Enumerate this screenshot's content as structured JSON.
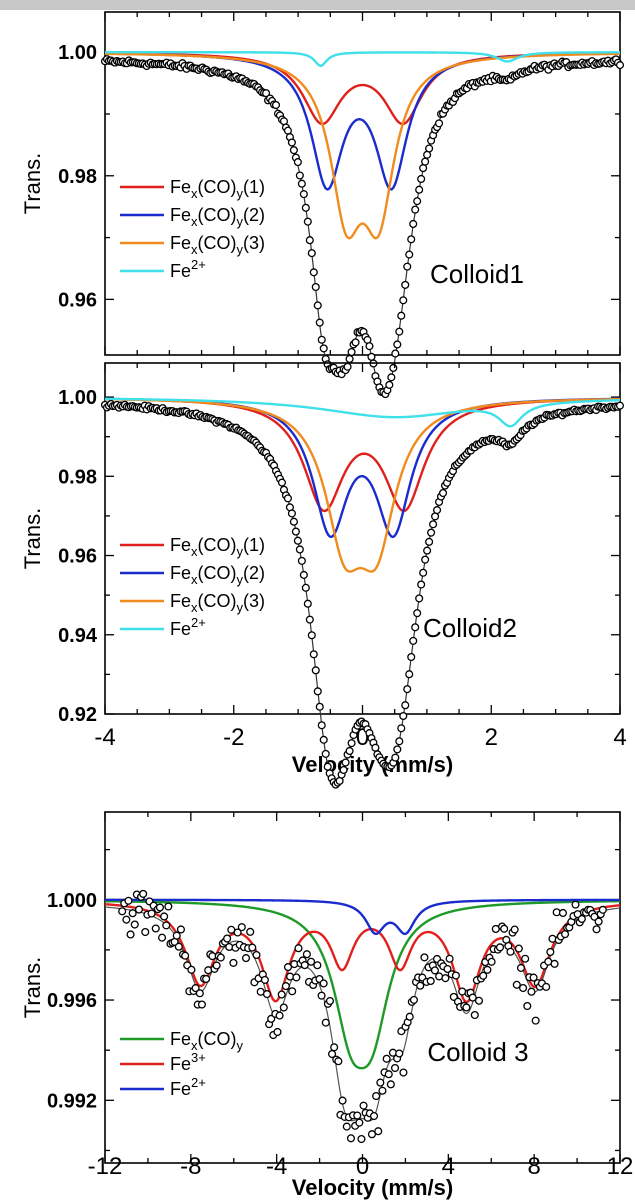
{
  "chart_data": [
    {
      "type": "line",
      "panel_label": "Colloid1",
      "ylabel": "Trans.",
      "xlabel": "",
      "xlim": [
        -4,
        4
      ],
      "ylim": [
        0.951,
        1.0065
      ],
      "yticks": [
        "0.96",
        "0.98",
        "1.00"
      ],
      "ytick_values": [
        0.96,
        0.98,
        1.0
      ],
      "xticks": [],
      "legend_location": "left",
      "series": [
        {
          "name": "Fe",
          "sub1": "x",
          "mid": "(CO)",
          "sub2": "y",
          "tail": "(1)",
          "color": "#e0201c",
          "components": [
            {
              "center": -0.63,
              "depth": 0.0108,
              "width": 0.36
            },
            {
              "center": 0.63,
              "depth": 0.0108,
              "width": 0.36
            }
          ]
        },
        {
          "name": "Fe",
          "sub1": "x",
          "mid": "(CO)",
          "sub2": "y",
          "tail": "(2)",
          "color": "#1a2ccc",
          "components": [
            {
              "center": -0.55,
              "depth": 0.0205,
              "width": 0.3
            },
            {
              "center": 0.45,
              "depth": 0.0205,
              "width": 0.3
            }
          ]
        },
        {
          "name": "Fe",
          "sub1": "x",
          "mid": "(CO)",
          "sub2": "y",
          "tail": "(3)",
          "color": "#f08c1e",
          "components": [
            {
              "center": -0.25,
              "depth": 0.0235,
              "width": 0.3
            },
            {
              "center": 0.25,
              "depth": 0.0235,
              "width": 0.3
            }
          ]
        },
        {
          "name": "Fe",
          "sup": "2+",
          "color": "#3fe0ea",
          "components": [
            {
              "center": -0.65,
              "depth": 0.0022,
              "width": 0.12
            },
            {
              "center": 2.25,
              "depth": 0.0015,
              "width": 0.2
            }
          ]
        }
      ],
      "total_fit": {
        "color": "#333333",
        "baseline": 0.9992
      },
      "data_point_count": 260
    },
    {
      "type": "line",
      "panel_label": "Colloid2",
      "ylabel": "Trans.",
      "xlabel": "Velocity (mm/s)",
      "xlim": [
        -4,
        4
      ],
      "ylim": [
        0.92,
        1.0086
      ],
      "yticks": [
        "0.92",
        "0.94",
        "0.96",
        "0.98",
        "1.00"
      ],
      "ytick_values": [
        0.92,
        0.94,
        0.96,
        0.98,
        1.0
      ],
      "xticks": [
        "-4",
        "-2",
        "0",
        "2",
        "4"
      ],
      "xtick_values": [
        -4,
        -2,
        0,
        2,
        4
      ],
      "legend_location": "left",
      "series": [
        {
          "name": "Fe",
          "sub1": "x",
          "mid": "(CO)",
          "sub2": "y",
          "tail": "(1)",
          "color": "#e0201c",
          "components": [
            {
              "center": -0.6,
              "depth": 0.0265,
              "width": 0.38
            },
            {
              "center": 0.65,
              "depth": 0.0265,
              "width": 0.38
            }
          ]
        },
        {
          "name": "Fe",
          "sub1": "x",
          "mid": "(CO)",
          "sub2": "y",
          "tail": "(2)",
          "color": "#1a2ccc",
          "components": [
            {
              "center": -0.5,
              "depth": 0.032,
              "width": 0.33
            },
            {
              "center": 0.48,
              "depth": 0.032,
              "width": 0.33
            }
          ]
        },
        {
          "name": "Fe",
          "sub1": "x",
          "mid": "(CO)",
          "sub2": "y",
          "tail": "(3)",
          "color": "#f08c1e",
          "components": [
            {
              "center": -0.28,
              "depth": 0.032,
              "width": 0.36
            },
            {
              "center": 0.22,
              "depth": 0.032,
              "width": 0.36
            }
          ]
        },
        {
          "name": "Fe",
          "sup": "2+",
          "color": "#3fe0ea",
          "components": [
            {
              "center": 0.5,
              "depth": 0.005,
              "width": 1.4
            },
            {
              "center": 2.3,
              "depth": 0.0055,
              "width": 0.22
            }
          ]
        }
      ],
      "total_fit": {
        "color": "#333333",
        "baseline": 1.0
      },
      "data_point_count": 260
    },
    {
      "type": "line",
      "panel_label": "Colloid 3",
      "ylabel": "Trans.",
      "xlabel": "Velocity (mm/s)",
      "xlim": [
        -12,
        12
      ],
      "ylim": [
        0.9895,
        1.0035
      ],
      "yticks": [
        "0.992",
        "0.996",
        "1.000"
      ],
      "ytick_values": [
        0.992,
        0.996,
        1.0
      ],
      "xticks": [
        "-12",
        "-8",
        "-4",
        "0",
        "4",
        "8",
        "12"
      ],
      "xtick_values": [
        -12,
        -8,
        -4,
        0,
        4,
        8,
        12
      ],
      "legend_location": "bottom-left",
      "series": [
        {
          "name": "Fe",
          "sub1": "x",
          "mid": "(CO)",
          "sub2": "y",
          "color": "#1e9a28",
          "components": [
            {
              "center": -0.55,
              "depth": 0.0042,
              "width": 1.0
            },
            {
              "center": 0.45,
              "depth": 0.0042,
              "width": 1.0
            }
          ]
        },
        {
          "name": "Fe",
          "sup": "3+",
          "color": "#e0201c",
          "components": [
            {
              "center": -7.55,
              "depth": 0.0032,
              "width": 0.85
            },
            {
              "center": -4.05,
              "depth": 0.0037,
              "width": 0.8
            },
            {
              "center": -0.95,
              "depth": 0.0023,
              "width": 0.65
            },
            {
              "center": 1.75,
              "depth": 0.0023,
              "width": 0.65
            },
            {
              "center": 4.85,
              "depth": 0.0037,
              "width": 0.8
            },
            {
              "center": 8.05,
              "depth": 0.0032,
              "width": 0.85
            }
          ]
        },
        {
          "name": "Fe",
          "sup": "2+",
          "color": "#1a2ccc",
          "components": [
            {
              "center": 0.6,
              "depth": 0.0012,
              "width": 0.55
            },
            {
              "center": 2.0,
              "depth": 0.0012,
              "width": 0.55
            }
          ]
        }
      ],
      "total_fit": {
        "color": "#555555",
        "baseline": 0.99995
      },
      "data_point_count": 230
    }
  ]
}
